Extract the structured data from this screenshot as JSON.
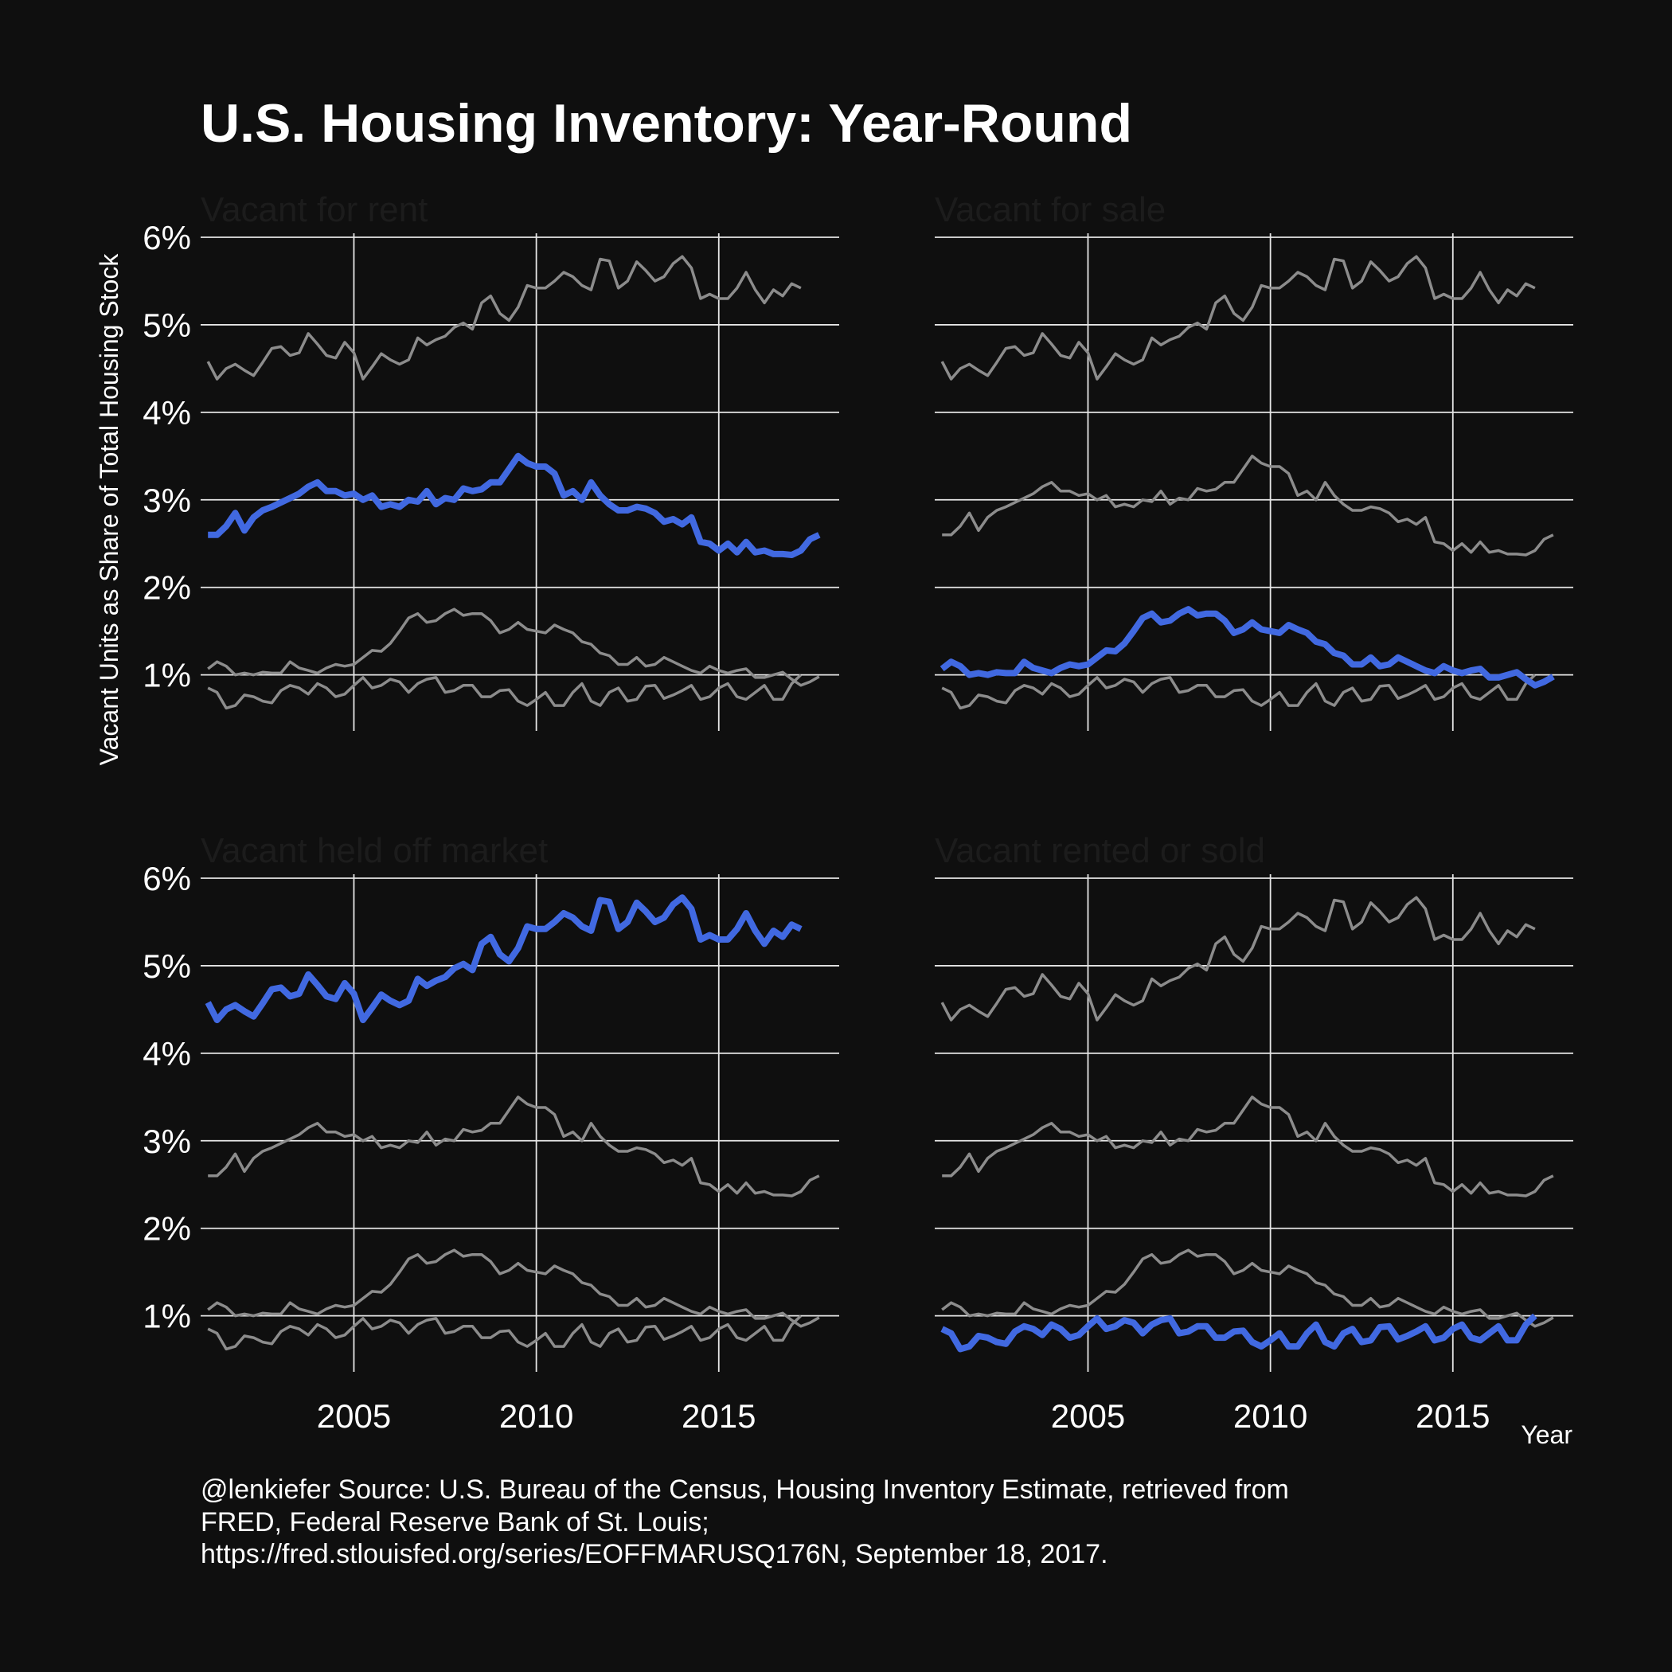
{
  "title": "U.S. Housing Inventory: Year-Round",
  "y_axis_label": "Vacant Units as Share of Total Housing Stock",
  "x_axis_label": "Year",
  "caption": [
    "@lenkiefer Source: U.S. Bureau of the Census, Housing Inventory Estimate, retrieved from",
    "FRED, Federal Reserve Bank of St. Louis;",
    "https://fred.stlouisfed.org/series/EOFFMARUSQ176N, September 18, 2017."
  ],
  "colors": {
    "background": "#0f0f0f",
    "highlight": "#4169e1",
    "context": "#8c8c8c",
    "grid": "#e6e6e6",
    "facet_title": "#1c1c1c"
  },
  "chart_data": {
    "type": "line",
    "facets": [
      "Vacant for rent",
      "Vacant for sale",
      "Vacant held off market",
      "Vacant rented or sold"
    ],
    "x_ticks": [
      2005,
      2010,
      2015
    ],
    "x_tick_labels": [
      "2005",
      "2010",
      "2015"
    ],
    "y_ticks": [
      1,
      2,
      3,
      4,
      5,
      6
    ],
    "y_tick_labels": [
      "1%",
      "2%",
      "3%",
      "4%",
      "5%",
      "6%"
    ],
    "xlim": [
      2000.8,
      2018.3
    ],
    "ylim": [
      0.36,
      6.0
    ],
    "x_start": 2001.0,
    "x_step": 0.25,
    "series": [
      {
        "name": "Vacant for rent",
        "values": [
          2.6,
          2.6,
          2.7,
          2.85,
          2.65,
          2.8,
          2.88,
          2.92,
          2.97,
          3.02,
          3.07,
          3.15,
          3.2,
          3.1,
          3.1,
          3.05,
          3.07,
          3.0,
          3.05,
          2.92,
          2.95,
          2.92,
          3.0,
          2.98,
          3.1,
          2.95,
          3.02,
          3.0,
          3.13,
          3.1,
          3.12,
          3.2,
          3.2,
          3.35,
          3.5,
          3.42,
          3.38,
          3.38,
          3.3,
          3.05,
          3.1,
          3.0,
          3.2,
          3.05,
          2.95,
          2.88,
          2.88,
          2.92,
          2.9,
          2.85,
          2.75,
          2.78,
          2.72,
          2.8,
          2.52,
          2.5,
          2.42,
          2.5,
          2.4,
          2.52,
          2.4,
          2.42,
          2.38,
          2.38,
          2.37,
          2.42,
          2.55,
          2.6
        ]
      },
      {
        "name": "Vacant for sale",
        "values": [
          1.07,
          1.15,
          1.1,
          1.0,
          1.02,
          1.0,
          1.03,
          1.02,
          1.02,
          1.15,
          1.08,
          1.05,
          1.02,
          1.08,
          1.12,
          1.1,
          1.12,
          1.2,
          1.28,
          1.27,
          1.36,
          1.5,
          1.65,
          1.7,
          1.6,
          1.62,
          1.7,
          1.75,
          1.68,
          1.7,
          1.7,
          1.62,
          1.48,
          1.52,
          1.6,
          1.52,
          1.5,
          1.48,
          1.57,
          1.52,
          1.48,
          1.38,
          1.35,
          1.25,
          1.22,
          1.12,
          1.12,
          1.2,
          1.1,
          1.12,
          1.2,
          1.15,
          1.1,
          1.05,
          1.02,
          1.1,
          1.05,
          1.02,
          1.05,
          1.07,
          0.97,
          0.97,
          1.0,
          1.03,
          0.95,
          0.88,
          0.92,
          0.98
        ]
      },
      {
        "name": "Vacant held off market",
        "values": [
          4.58,
          4.38,
          4.5,
          4.55,
          4.48,
          4.42,
          4.57,
          4.73,
          4.75,
          4.65,
          4.68,
          4.9,
          4.78,
          4.65,
          4.62,
          4.8,
          4.68,
          4.38,
          4.52,
          4.67,
          4.6,
          4.55,
          4.6,
          4.85,
          4.77,
          4.83,
          4.87,
          4.97,
          5.02,
          4.95,
          5.25,
          5.33,
          5.13,
          5.05,
          5.2,
          5.45,
          5.42,
          5.42,
          5.5,
          5.6,
          5.55,
          5.45,
          5.4,
          5.75,
          5.73,
          5.42,
          5.5,
          5.72,
          5.62,
          5.5,
          5.55,
          5.7,
          5.78,
          5.65,
          5.3,
          5.35,
          5.3,
          5.3,
          5.42,
          5.6,
          5.4,
          5.25,
          5.4,
          5.33,
          5.47,
          5.42
        ]
      },
      {
        "name": "Vacant rented or sold",
        "values": [
          0.85,
          0.8,
          0.62,
          0.65,
          0.77,
          0.75,
          0.7,
          0.68,
          0.82,
          0.88,
          0.85,
          0.78,
          0.9,
          0.85,
          0.75,
          0.78,
          0.88,
          0.97,
          0.85,
          0.88,
          0.95,
          0.92,
          0.8,
          0.9,
          0.95,
          0.97,
          0.8,
          0.82,
          0.88,
          0.88,
          0.75,
          0.75,
          0.82,
          0.83,
          0.7,
          0.65,
          0.72,
          0.8,
          0.65,
          0.65,
          0.8,
          0.9,
          0.7,
          0.65,
          0.8,
          0.85,
          0.7,
          0.72,
          0.87,
          0.88,
          0.73,
          0.77,
          0.82,
          0.88,
          0.72,
          0.75,
          0.85,
          0.9,
          0.75,
          0.72,
          0.8,
          0.88,
          0.72,
          0.72,
          0.9,
          1.0
        ]
      }
    ]
  }
}
